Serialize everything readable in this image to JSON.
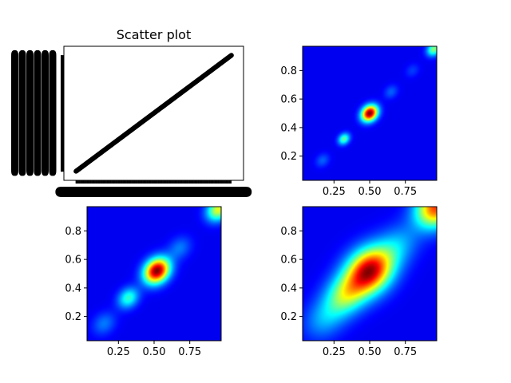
{
  "chart_data": [
    {
      "type": "scatter",
      "title": "Scatter plot",
      "xlabel": "",
      "ylabel": "",
      "xlim": [
        -0.02,
        1.02
      ],
      "ylim": [
        -0.02,
        1.02
      ],
      "n_points": 500,
      "x_range": [
        0.05,
        0.95
      ],
      "y_equals_x": true,
      "marker_color": "#000000",
      "grid": false,
      "tick_labels_overlapping": true
    },
    {
      "type": "heatmap",
      "colormap": "jet",
      "xlim": [
        0.03,
        0.97
      ],
      "ylim": [
        0.03,
        0.97
      ],
      "xticks": [
        "0.25",
        "0.50",
        "0.75"
      ],
      "yticks": [
        "0.2",
        "0.4",
        "0.6",
        "0.8"
      ],
      "peaks": [
        {
          "x": 0.5,
          "y": 0.5,
          "intensity": 1.0,
          "spread": 0.035
        },
        {
          "x": 0.95,
          "y": 0.95,
          "intensity": 0.45,
          "spread": 0.03
        },
        {
          "x": 0.32,
          "y": 0.32,
          "intensity": 0.4,
          "spread": 0.025
        },
        {
          "x": 0.17,
          "y": 0.17,
          "intensity": 0.12,
          "spread": 0.03
        },
        {
          "x": 0.65,
          "y": 0.65,
          "intensity": 0.12,
          "spread": 0.03
        },
        {
          "x": 0.8,
          "y": 0.8,
          "intensity": 0.08,
          "spread": 0.03
        }
      ]
    },
    {
      "type": "heatmap",
      "colormap": "jet",
      "xlim": [
        0.03,
        0.97
      ],
      "ylim": [
        0.03,
        0.97
      ],
      "xticks": [
        "0.25",
        "0.50",
        "0.75"
      ],
      "yticks": [
        "0.2",
        "0.4",
        "0.6",
        "0.8"
      ],
      "peaks": [
        {
          "x": 0.52,
          "y": 0.52,
          "intensity": 1.0,
          "spread": 0.055
        },
        {
          "x": 0.95,
          "y": 0.95,
          "intensity": 0.55,
          "spread": 0.05
        },
        {
          "x": 0.32,
          "y": 0.33,
          "intensity": 0.35,
          "spread": 0.045
        },
        {
          "x": 0.15,
          "y": 0.15,
          "intensity": 0.15,
          "spread": 0.05
        },
        {
          "x": 0.68,
          "y": 0.68,
          "intensity": 0.15,
          "spread": 0.05
        }
      ]
    },
    {
      "type": "heatmap",
      "colormap": "jet",
      "xlim": [
        0.03,
        0.97
      ],
      "ylim": [
        0.03,
        0.97
      ],
      "xticks": [
        "0.25",
        "0.50",
        "0.75"
      ],
      "yticks": [
        "0.2",
        "0.4",
        "0.6",
        "0.8"
      ],
      "peaks": [
        {
          "x": 0.5,
          "y": 0.52,
          "intensity": 1.0,
          "spread": 0.1
        },
        {
          "x": 0.97,
          "y": 0.97,
          "intensity": 0.85,
          "spread": 0.09
        },
        {
          "x": 0.33,
          "y": 0.35,
          "intensity": 0.45,
          "spread": 0.09
        },
        {
          "x": 0.18,
          "y": 0.18,
          "intensity": 0.2,
          "spread": 0.09
        },
        {
          "x": 0.7,
          "y": 0.7,
          "intensity": 0.2,
          "spread": 0.09
        }
      ]
    }
  ]
}
